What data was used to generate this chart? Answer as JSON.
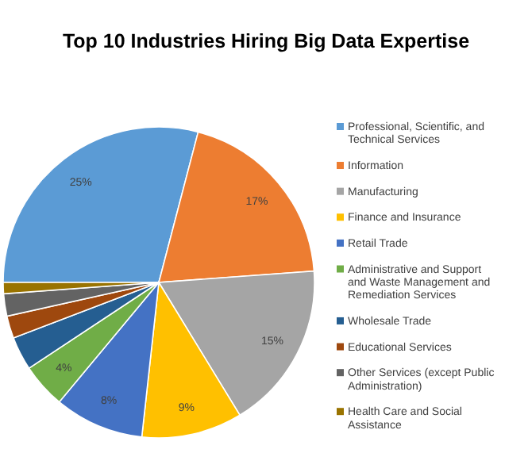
{
  "chart_data": {
    "type": "pie",
    "title": "Top 10 Industries Hiring Big Data Expertise",
    "categories": [
      "Professional, Scientific, and Technical Services",
      "Information",
      "Manufacturing",
      "Finance and Insurance",
      "Retail Trade",
      "Administrative and Support and Waste Management and Remediation Services",
      "Wholesale Trade",
      "Educational Services",
      "Other Services (except Public Administration)",
      "Health Care and Social Assistance"
    ],
    "values": [
      25,
      17,
      15,
      9,
      8,
      4,
      3,
      2,
      2,
      1
    ],
    "value_labels": [
      "25%",
      "17%",
      "15%",
      "9%",
      "8%",
      "4%",
      null,
      null,
      null,
      null
    ],
    "colors": [
      "#5b9bd5",
      "#ed7d31",
      "#a5a5a5",
      "#ffc000",
      "#4472c4",
      "#70ad47",
      "#255e91",
      "#9e480e",
      "#636363",
      "#997300"
    ],
    "legend": "right"
  }
}
